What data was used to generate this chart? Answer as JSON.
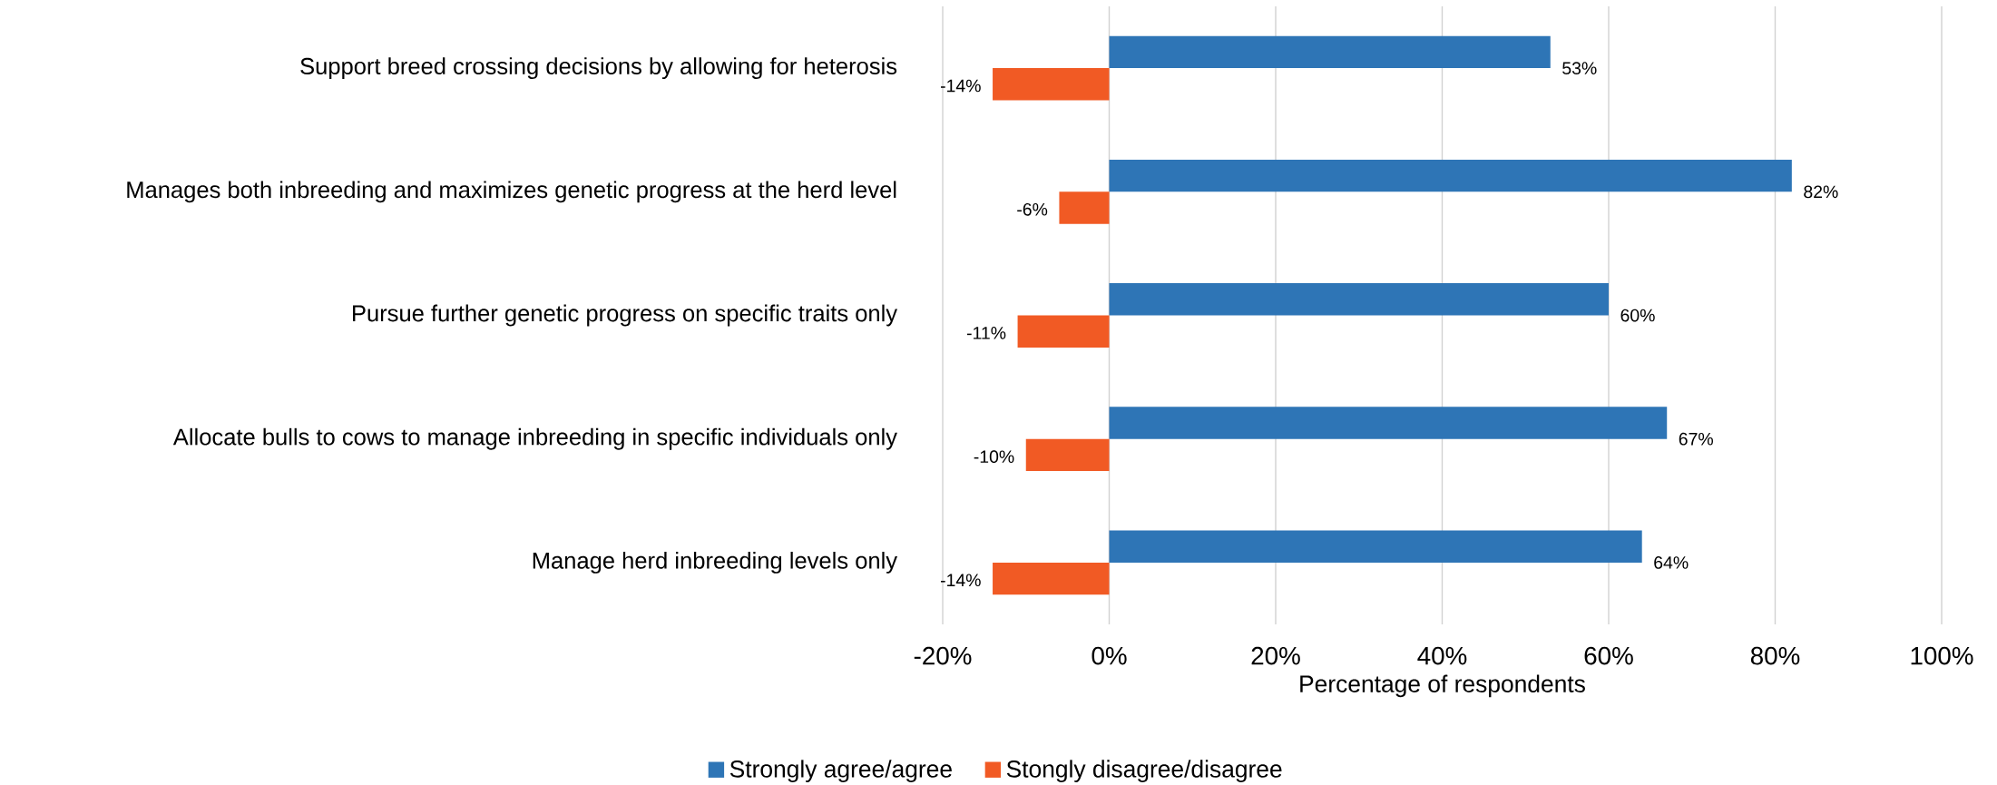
{
  "chart_data": {
    "type": "bar",
    "orientation": "horizontal",
    "categories": [
      "Support breed crossing decisions by allowing for heterosis",
      "Manages both inbreeding and maximizes genetic progress at the herd level",
      "Pursue further genetic progress on specific traits only",
      "Allocate bulls to cows to manage inbreeding in specific individuals only",
      "Manage herd inbreeding levels only"
    ],
    "series": [
      {
        "name": "Strongly agree/agree",
        "color": "#2e75b6",
        "values": [
          53,
          82,
          60,
          67,
          64
        ],
        "value_labels": [
          "53%",
          "82%",
          "60%",
          "67%",
          "64%"
        ]
      },
      {
        "name": "Stongly disagree/disagree",
        "color": "#f15a24",
        "values": [
          -14,
          -6,
          -11,
          -10,
          -14
        ],
        "value_labels": [
          "-14%",
          "-6%",
          "-11%",
          "-10%",
          "-14%"
        ]
      }
    ],
    "xlim": [
      -20,
      100
    ],
    "xticks": [
      {
        "value": -20,
        "label": "-20%"
      },
      {
        "value": 0,
        "label": "0%"
      },
      {
        "value": 20,
        "label": "20%"
      },
      {
        "value": 40,
        "label": "40%"
      },
      {
        "value": 60,
        "label": "60%"
      },
      {
        "value": 80,
        "label": "80%"
      },
      {
        "value": 100,
        "label": "100%"
      }
    ],
    "xlabel": "Percentage of respondents",
    "grid": "x",
    "legend": "bottom"
  }
}
